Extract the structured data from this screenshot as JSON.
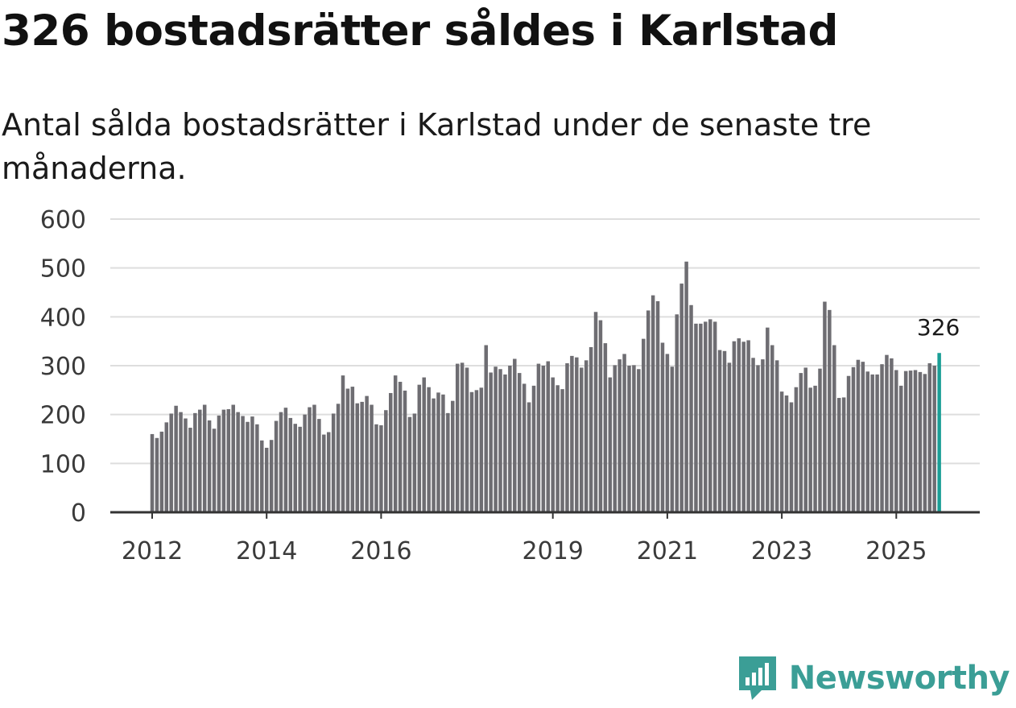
{
  "headline": "326 bostadsrätter såldes i Karlstad",
  "subtitle": "Antal sålda bostadsrätter i Karlstad under de senaste tre månaderna.",
  "brand": {
    "name": "Newsworthy",
    "icon": "newsworthy-logo-icon",
    "color": "#3b9e96"
  },
  "colors": {
    "bar": "#6e6d72",
    "highlight": "#1a9e96",
    "grid": "#dedede",
    "axis": "#333333"
  },
  "chart_data": {
    "type": "bar",
    "title": "Antal sålda bostadsrätter i Karlstad",
    "xlabel": "",
    "ylabel": "",
    "ylim": [
      0,
      600
    ],
    "yticks": [
      0,
      100,
      200,
      300,
      400,
      500,
      600
    ],
    "ytick_labels": [
      "0",
      "100",
      "200",
      "300",
      "400",
      "500",
      "600"
    ],
    "xticks": [
      {
        "label": "2012",
        "index": 0
      },
      {
        "label": "2014",
        "index": 24
      },
      {
        "label": "2016",
        "index": 48
      },
      {
        "label": "2019",
        "index": 84
      },
      {
        "label": "2021",
        "index": 108
      },
      {
        "label": "2023",
        "index": 132
      },
      {
        "label": "2025",
        "index": 156
      }
    ],
    "start": "2012-01",
    "highlight_index": 165,
    "highlight_label": "326",
    "values": [
      160,
      152,
      165,
      184,
      202,
      218,
      205,
      192,
      173,
      203,
      210,
      220,
      188,
      171,
      198,
      210,
      211,
      220,
      205,
      197,
      185,
      196,
      180,
      147,
      132,
      148,
      187,
      205,
      214,
      193,
      181,
      175,
      200,
      215,
      220,
      191,
      159,
      164,
      202,
      222,
      280,
      253,
      257,
      223,
      226,
      238,
      220,
      180,
      178,
      209,
      244,
      280,
      267,
      249,
      195,
      202,
      261,
      276,
      256,
      233,
      245,
      241,
      203,
      228,
      304,
      306,
      296,
      246,
      250,
      255,
      342,
      286,
      298,
      293,
      282,
      300,
      314,
      285,
      263,
      225,
      259,
      304,
      300,
      309,
      276,
      260,
      252,
      305,
      320,
      317,
      296,
      311,
      338,
      410,
      393,
      346,
      276,
      301,
      313,
      324,
      300,
      301,
      293,
      355,
      413,
      444,
      432,
      347,
      324,
      298,
      405,
      468,
      513,
      424,
      386,
      386,
      390,
      395,
      390,
      332,
      330,
      306,
      350,
      356,
      349,
      352,
      316,
      301,
      313,
      378,
      342,
      311,
      247,
      239,
      225,
      256,
      285,
      296,
      255,
      259,
      294,
      431,
      414,
      342,
      234,
      235,
      279,
      297,
      312,
      308,
      288,
      282,
      282,
      303,
      322,
      315,
      291,
      259,
      289,
      290,
      291,
      287,
      283,
      305,
      300,
      326
    ]
  }
}
